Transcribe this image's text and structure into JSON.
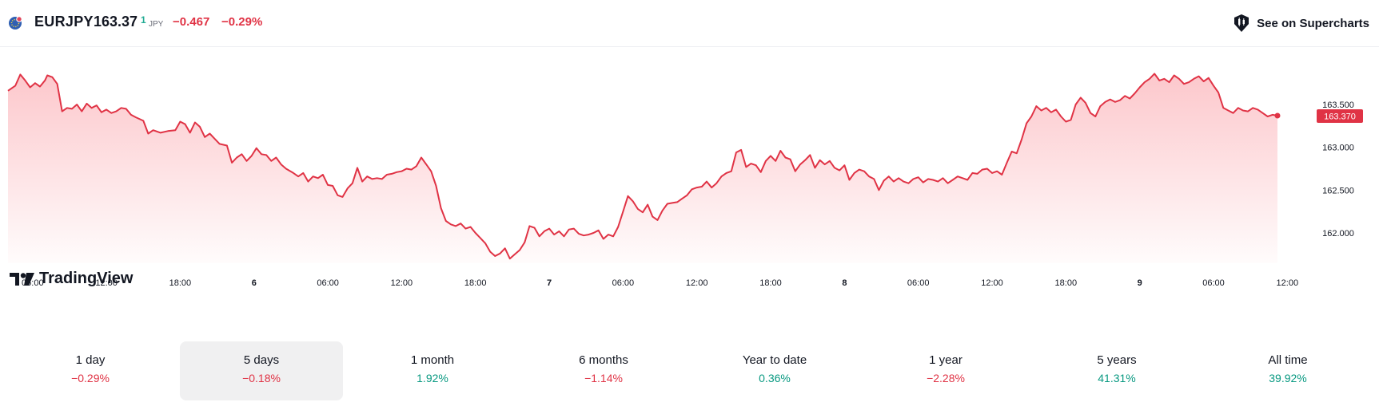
{
  "header": {
    "symbol": "EURJPY",
    "price": "163.37",
    "price_sup": "1",
    "currency": "JPY",
    "change": "−0.467",
    "change_percent": "−0.29%",
    "supercharts_label": "See on Supercharts",
    "flag_icon": "eu-flag-icon",
    "supercharts_icon": "chart-candles-icon"
  },
  "watermark": "TradingView",
  "colors": {
    "line": "#e03345",
    "negative": "#e03345",
    "positive": "#089981",
    "price_label_bg": "#e03345"
  },
  "chart_data": {
    "type": "area",
    "y_ticks": [
      "163.500",
      "163.000",
      "162.500",
      "162.000"
    ],
    "y_tick_values": [
      163.5,
      163.0,
      162.5,
      162.0
    ],
    "last_price_label": "163.370",
    "last_price": 163.37,
    "x_ticks": [
      {
        "label": "06:00",
        "bold": false
      },
      {
        "label": "12:00",
        "bold": false
      },
      {
        "label": "18:00",
        "bold": false
      },
      {
        "label": "6",
        "bold": true
      },
      {
        "label": "06:00",
        "bold": false
      },
      {
        "label": "12:00",
        "bold": false
      },
      {
        "label": "18:00",
        "bold": false
      },
      {
        "label": "7",
        "bold": true
      },
      {
        "label": "06:00",
        "bold": false
      },
      {
        "label": "12:00",
        "bold": false
      },
      {
        "label": "18:00",
        "bold": false
      },
      {
        "label": "8",
        "bold": true
      },
      {
        "label": "06:00",
        "bold": false
      },
      {
        "label": "12:00",
        "bold": false
      },
      {
        "label": "18:00",
        "bold": false
      },
      {
        "label": "9",
        "bold": true
      },
      {
        "label": "06:00",
        "bold": false
      },
      {
        "label": "12:00",
        "bold": false
      }
    ],
    "x_tick_positions": [
      1.0,
      4.0,
      7.0,
      10.0,
      13.0,
      16.0,
      19.0,
      22.0,
      25.0,
      28.0,
      31.0,
      34.0,
      37.0,
      40.0,
      43.0,
      46.0,
      49.0,
      52.0
    ],
    "x_range": [
      0,
      52.9
    ],
    "ylim": [
      161.7,
      164.0
    ],
    "values": [
      [
        0.0,
        163.66
      ],
      [
        0.3,
        163.72
      ],
      [
        0.5,
        163.85
      ],
      [
        0.7,
        163.78
      ],
      [
        0.9,
        163.7
      ],
      [
        1.1,
        163.75
      ],
      [
        1.3,
        163.71
      ],
      [
        1.5,
        163.78
      ],
      [
        1.6,
        163.84
      ],
      [
        1.8,
        163.82
      ],
      [
        2.0,
        163.74
      ],
      [
        2.2,
        163.42
      ],
      [
        2.4,
        163.46
      ],
      [
        2.6,
        163.45
      ],
      [
        2.8,
        163.5
      ],
      [
        3.0,
        163.42
      ],
      [
        3.2,
        163.51
      ],
      [
        3.4,
        163.46
      ],
      [
        3.6,
        163.49
      ],
      [
        3.8,
        163.41
      ],
      [
        4.0,
        163.44
      ],
      [
        4.2,
        163.4
      ],
      [
        4.4,
        163.42
      ],
      [
        4.6,
        163.46
      ],
      [
        4.8,
        163.45
      ],
      [
        5.0,
        163.38
      ],
      [
        5.2,
        163.35
      ],
      [
        5.5,
        163.31
      ],
      [
        5.7,
        163.16
      ],
      [
        5.9,
        163.2
      ],
      [
        6.2,
        163.17
      ],
      [
        6.5,
        163.19
      ],
      [
        6.8,
        163.2
      ],
      [
        7.0,
        163.3
      ],
      [
        7.2,
        163.27
      ],
      [
        7.4,
        163.17
      ],
      [
        7.6,
        163.29
      ],
      [
        7.8,
        163.24
      ],
      [
        8.0,
        163.12
      ],
      [
        8.2,
        163.16
      ],
      [
        8.4,
        163.1
      ],
      [
        8.6,
        163.04
      ],
      [
        8.9,
        163.02
      ],
      [
        9.1,
        162.82
      ],
      [
        9.3,
        162.88
      ],
      [
        9.5,
        162.92
      ],
      [
        9.7,
        162.84
      ],
      [
        9.9,
        162.9
      ],
      [
        10.1,
        162.99
      ],
      [
        10.3,
        162.92
      ],
      [
        10.5,
        162.91
      ],
      [
        10.7,
        162.84
      ],
      [
        10.9,
        162.88
      ],
      [
        11.1,
        162.8
      ],
      [
        11.3,
        162.75
      ],
      [
        11.6,
        162.7
      ],
      [
        11.8,
        162.66
      ],
      [
        12.0,
        162.7
      ],
      [
        12.2,
        162.6
      ],
      [
        12.4,
        162.66
      ],
      [
        12.6,
        162.64
      ],
      [
        12.8,
        162.68
      ],
      [
        13.0,
        162.56
      ],
      [
        13.2,
        162.55
      ],
      [
        13.4,
        162.44
      ],
      [
        13.6,
        162.42
      ],
      [
        13.8,
        162.52
      ],
      [
        14.0,
        162.58
      ],
      [
        14.2,
        162.76
      ],
      [
        14.4,
        162.6
      ],
      [
        14.6,
        162.66
      ],
      [
        14.8,
        162.63
      ],
      [
        15.0,
        162.64
      ],
      [
        15.2,
        162.63
      ],
      [
        15.4,
        162.68
      ],
      [
        15.6,
        162.69
      ],
      [
        15.8,
        162.71
      ],
      [
        16.0,
        162.72
      ],
      [
        16.2,
        162.75
      ],
      [
        16.4,
        162.74
      ],
      [
        16.6,
        162.78
      ],
      [
        16.8,
        162.88
      ],
      [
        17.0,
        162.8
      ],
      [
        17.2,
        162.72
      ],
      [
        17.4,
        162.55
      ],
      [
        17.6,
        162.29
      ],
      [
        17.8,
        162.14
      ],
      [
        18.0,
        162.1
      ],
      [
        18.2,
        162.08
      ],
      [
        18.4,
        162.11
      ],
      [
        18.6,
        162.05
      ],
      [
        18.8,
        162.07
      ],
      [
        19.0,
        162.0
      ],
      [
        19.2,
        161.94
      ],
      [
        19.4,
        161.88
      ],
      [
        19.6,
        161.78
      ],
      [
        19.8,
        161.73
      ],
      [
        20.0,
        161.76
      ],
      [
        20.2,
        161.82
      ],
      [
        20.4,
        161.7
      ],
      [
        20.6,
        161.75
      ],
      [
        20.8,
        161.8
      ],
      [
        21.0,
        161.89
      ],
      [
        21.2,
        162.08
      ],
      [
        21.4,
        162.06
      ],
      [
        21.6,
        161.96
      ],
      [
        21.8,
        162.02
      ],
      [
        22.0,
        162.05
      ],
      [
        22.2,
        161.98
      ],
      [
        22.4,
        162.02
      ],
      [
        22.6,
        161.96
      ],
      [
        22.8,
        162.04
      ],
      [
        23.0,
        162.05
      ],
      [
        23.2,
        161.99
      ],
      [
        23.4,
        161.97
      ],
      [
        23.6,
        161.98
      ],
      [
        23.8,
        162.0
      ],
      [
        24.0,
        162.03
      ],
      [
        24.2,
        161.93
      ],
      [
        24.4,
        161.98
      ],
      [
        24.6,
        161.96
      ],
      [
        24.8,
        162.07
      ],
      [
        25.0,
        162.25
      ],
      [
        25.2,
        162.43
      ],
      [
        25.4,
        162.37
      ],
      [
        25.6,
        162.28
      ],
      [
        25.8,
        162.24
      ],
      [
        26.0,
        162.33
      ],
      [
        26.2,
        162.19
      ],
      [
        26.4,
        162.15
      ],
      [
        26.6,
        162.26
      ],
      [
        26.8,
        162.34
      ],
      [
        27.0,
        162.35
      ],
      [
        27.2,
        162.36
      ],
      [
        27.4,
        162.4
      ],
      [
        27.6,
        162.44
      ],
      [
        27.8,
        162.51
      ],
      [
        28.0,
        162.53
      ],
      [
        28.2,
        162.54
      ],
      [
        28.4,
        162.6
      ],
      [
        28.6,
        162.53
      ],
      [
        28.8,
        162.58
      ],
      [
        29.0,
        162.66
      ],
      [
        29.2,
        162.7
      ],
      [
        29.4,
        162.72
      ],
      [
        29.6,
        162.94
      ],
      [
        29.8,
        162.97
      ],
      [
        30.0,
        162.77
      ],
      [
        30.2,
        162.81
      ],
      [
        30.4,
        162.79
      ],
      [
        30.6,
        162.71
      ],
      [
        30.8,
        162.84
      ],
      [
        31.0,
        162.9
      ],
      [
        31.2,
        162.84
      ],
      [
        31.4,
        162.96
      ],
      [
        31.6,
        162.88
      ],
      [
        31.8,
        162.86
      ],
      [
        32.0,
        162.72
      ],
      [
        32.2,
        162.8
      ],
      [
        32.4,
        162.85
      ],
      [
        32.6,
        162.91
      ],
      [
        32.8,
        162.76
      ],
      [
        33.0,
        162.85
      ],
      [
        33.2,
        162.8
      ],
      [
        33.4,
        162.84
      ],
      [
        33.6,
        162.76
      ],
      [
        33.8,
        162.73
      ],
      [
        34.0,
        162.79
      ],
      [
        34.2,
        162.62
      ],
      [
        34.4,
        162.7
      ],
      [
        34.6,
        162.74
      ],
      [
        34.8,
        162.72
      ],
      [
        35.0,
        162.66
      ],
      [
        35.2,
        162.63
      ],
      [
        35.4,
        162.5
      ],
      [
        35.6,
        162.61
      ],
      [
        35.8,
        162.66
      ],
      [
        36.0,
        162.6
      ],
      [
        36.2,
        162.64
      ],
      [
        36.4,
        162.6
      ],
      [
        36.6,
        162.58
      ],
      [
        36.8,
        162.63
      ],
      [
        37.0,
        162.65
      ],
      [
        37.2,
        162.59
      ],
      [
        37.4,
        162.63
      ],
      [
        37.6,
        162.62
      ],
      [
        37.8,
        162.6
      ],
      [
        38.0,
        162.64
      ],
      [
        38.2,
        162.58
      ],
      [
        38.4,
        162.62
      ],
      [
        38.6,
        162.66
      ],
      [
        38.8,
        162.64
      ],
      [
        39.0,
        162.62
      ],
      [
        39.2,
        162.7
      ],
      [
        39.4,
        162.69
      ],
      [
        39.6,
        162.74
      ],
      [
        39.8,
        162.75
      ],
      [
        40.0,
        162.7
      ],
      [
        40.2,
        162.72
      ],
      [
        40.4,
        162.68
      ],
      [
        40.6,
        162.82
      ],
      [
        40.8,
        162.95
      ],
      [
        41.0,
        162.93
      ],
      [
        41.2,
        163.09
      ],
      [
        41.4,
        163.28
      ],
      [
        41.6,
        163.36
      ],
      [
        41.8,
        163.48
      ],
      [
        42.0,
        163.43
      ],
      [
        42.2,
        163.46
      ],
      [
        42.4,
        163.41
      ],
      [
        42.6,
        163.44
      ],
      [
        42.8,
        163.36
      ],
      [
        43.0,
        163.3
      ],
      [
        43.2,
        163.32
      ],
      [
        43.4,
        163.5
      ],
      [
        43.6,
        163.58
      ],
      [
        43.8,
        163.52
      ],
      [
        44.0,
        163.4
      ],
      [
        44.2,
        163.36
      ],
      [
        44.4,
        163.48
      ],
      [
        44.6,
        163.53
      ],
      [
        44.8,
        163.56
      ],
      [
        45.0,
        163.53
      ],
      [
        45.2,
        163.55
      ],
      [
        45.4,
        163.6
      ],
      [
        45.6,
        163.57
      ],
      [
        45.8,
        163.63
      ],
      [
        46.0,
        163.7
      ],
      [
        46.2,
        163.76
      ],
      [
        46.4,
        163.8
      ],
      [
        46.6,
        163.86
      ],
      [
        46.8,
        163.78
      ],
      [
        47.0,
        163.8
      ],
      [
        47.2,
        163.76
      ],
      [
        47.4,
        163.84
      ],
      [
        47.6,
        163.8
      ],
      [
        47.8,
        163.74
      ],
      [
        48.0,
        163.76
      ],
      [
        48.2,
        163.8
      ],
      [
        48.4,
        163.83
      ],
      [
        48.6,
        163.77
      ],
      [
        48.8,
        163.81
      ],
      [
        49.0,
        163.72
      ],
      [
        49.2,
        163.64
      ],
      [
        49.4,
        163.46
      ],
      [
        49.6,
        163.43
      ],
      [
        49.8,
        163.4
      ],
      [
        50.0,
        163.46
      ],
      [
        50.2,
        163.43
      ],
      [
        50.4,
        163.42
      ],
      [
        50.6,
        163.46
      ],
      [
        50.8,
        163.44
      ],
      [
        51.0,
        163.4
      ],
      [
        51.2,
        163.36
      ],
      [
        51.4,
        163.38
      ],
      [
        51.6,
        163.37
      ]
    ]
  },
  "periods": [
    {
      "label": "1 day",
      "value": "−0.29%",
      "sign": "neg",
      "active": false
    },
    {
      "label": "5 days",
      "value": "−0.18%",
      "sign": "neg",
      "active": true
    },
    {
      "label": "1 month",
      "value": "1.92%",
      "sign": "pos",
      "active": false
    },
    {
      "label": "6 months",
      "value": "−1.14%",
      "sign": "neg",
      "active": false
    },
    {
      "label": "Year to date",
      "value": "0.36%",
      "sign": "pos",
      "active": false
    },
    {
      "label": "1 year",
      "value": "−2.28%",
      "sign": "neg",
      "active": false
    },
    {
      "label": "5 years",
      "value": "41.31%",
      "sign": "pos",
      "active": false
    },
    {
      "label": "All time",
      "value": "39.92%",
      "sign": "pos",
      "active": false
    }
  ]
}
